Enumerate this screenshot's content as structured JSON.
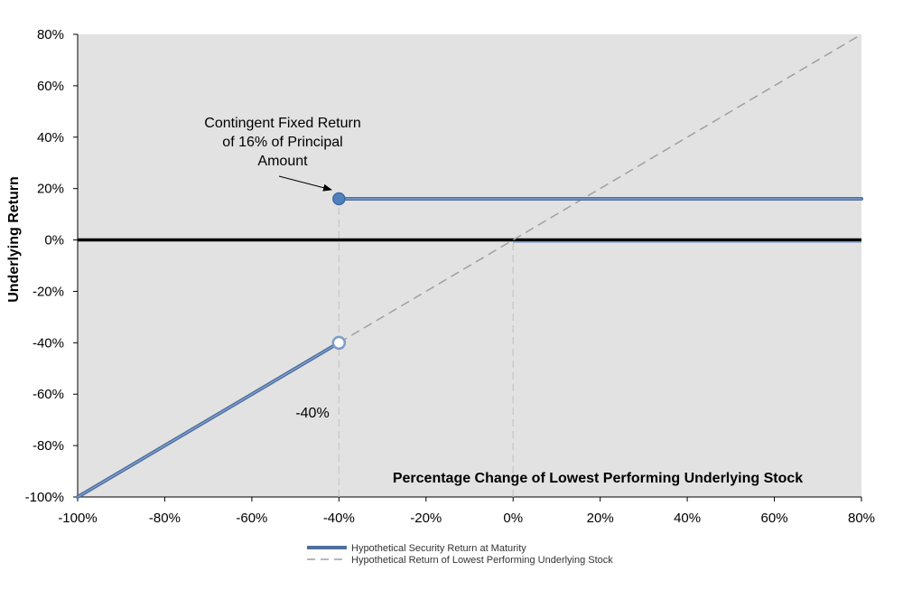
{
  "chart_data": {
    "type": "line",
    "xlabel": "Percentage Change of Lowest Performing Underlying Stock",
    "ylabel": "Underlying Return",
    "xlim": [
      -100,
      80
    ],
    "ylim": [
      -100,
      80
    ],
    "x_ticks": [
      "-100%",
      "-80%",
      "-60%",
      "-40%",
      "-20%",
      "0%",
      "20%",
      "40%",
      "60%",
      "80%"
    ],
    "y_ticks": [
      "80%",
      "60%",
      "40%",
      "20%",
      "0%",
      "-20%",
      "-40%",
      "-60%",
      "-80%",
      "-100%"
    ],
    "grid": false,
    "legend_position": "bottom-center",
    "colors": {
      "plot_background": "#e2e2e2",
      "security_line": "#4f6f9f",
      "security_marker_fill": "#4f81bd",
      "stock_line": "#a0a0a0",
      "zero_line": "#000000",
      "reference_line": "#c8c8c8"
    },
    "series": [
      {
        "name": "Hypothetical Security Return at Maturity",
        "style": "solid",
        "segments": [
          {
            "points": [
              [
                -100,
                -100
              ],
              [
                -40,
                -40
              ]
            ]
          },
          {
            "points": [
              [
                -40,
                16
              ],
              [
                80,
                16
              ]
            ]
          },
          {
            "points": [
              [
                0,
                0
              ],
              [
                80,
                0
              ]
            ]
          }
        ],
        "markers": [
          {
            "x": -40,
            "y": 16,
            "filled": true
          },
          {
            "x": -40,
            "y": -40,
            "filled": false
          }
        ]
      },
      {
        "name": "Hypothetical Return of Lowest Performing Underlying Stock",
        "style": "dashed",
        "points": [
          [
            -100,
            -100
          ],
          [
            80,
            80
          ]
        ]
      }
    ],
    "reference_lines": [
      {
        "x": -40,
        "y_from": -100,
        "y_to": 16
      },
      {
        "x": 0,
        "y_from": -100,
        "y_to": 0
      }
    ],
    "annotations": [
      {
        "lines": [
          "Contingent Fixed Return",
          "of 16% of Principal",
          "Amount"
        ],
        "arrow_to": [
          -40,
          16
        ]
      },
      {
        "text": "-40%"
      }
    ]
  }
}
